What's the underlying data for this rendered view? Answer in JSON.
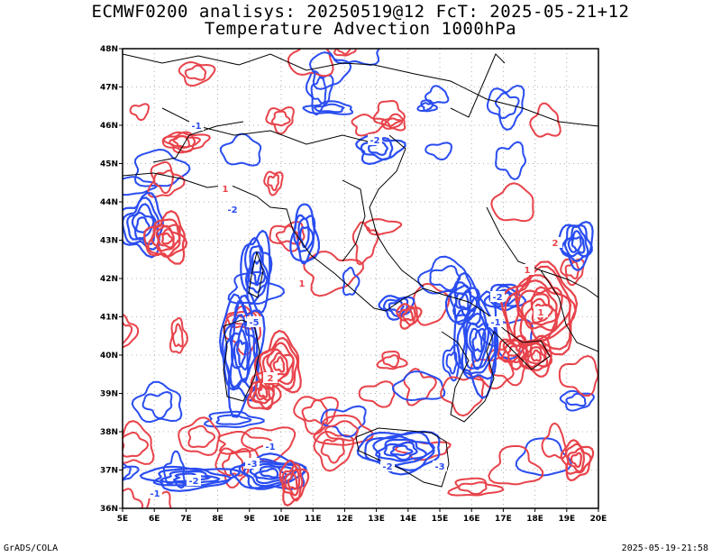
{
  "title_line1": "ECMWF0200 analisys: 20250519@12 FcT: 2025-05-21+12",
  "title_line2": "Temperature Advection 1000hPa",
  "lat_labels": [
    "48N",
    "47N",
    "46N",
    "45N",
    "44N",
    "43N",
    "42N",
    "41N",
    "40N",
    "39N",
    "38N",
    "37N",
    "36N"
  ],
  "lon_labels": [
    "5E",
    "6E",
    "7E",
    "8E",
    "9E",
    "10E",
    "11E",
    "12E",
    "13E",
    "14E",
    "15E",
    "16E",
    "17E",
    "18E",
    "19E",
    "20E"
  ],
  "footer_left": "GrADS/COLA",
  "footer_right": "2025-05-19-21:58",
  "colors": {
    "warm_advection": "#e8434b",
    "cold_advection": "#2a4df0",
    "coastline": "#000000",
    "grid": "#9a9a9a"
  },
  "contour_labels": [
    {
      "text": "-1",
      "color": "cold"
    },
    {
      "text": "-2",
      "color": "cold"
    },
    {
      "text": "-3",
      "color": "cold"
    },
    {
      "text": "-5",
      "color": "cold"
    },
    {
      "text": "-2",
      "color": "cold"
    },
    {
      "text": "-1",
      "color": "cold"
    },
    {
      "text": "-2",
      "color": "cold"
    },
    {
      "text": "-3",
      "color": "cold"
    },
    {
      "text": "-1",
      "color": "cold"
    },
    {
      "text": "-2",
      "color": "cold"
    },
    {
      "text": "-1",
      "color": "cold"
    },
    {
      "text": "-2",
      "color": "cold"
    },
    {
      "text": "1",
      "color": "warm"
    },
    {
      "text": "1",
      "color": "warm"
    },
    {
      "text": "2",
      "color": "warm"
    },
    {
      "text": "1",
      "color": "warm"
    },
    {
      "text": "2",
      "color": "warm"
    },
    {
      "text": "1",
      "color": "warm"
    }
  ],
  "map_extent": {
    "lon": [
      5,
      20
    ],
    "lat": [
      36,
      48
    ]
  }
}
